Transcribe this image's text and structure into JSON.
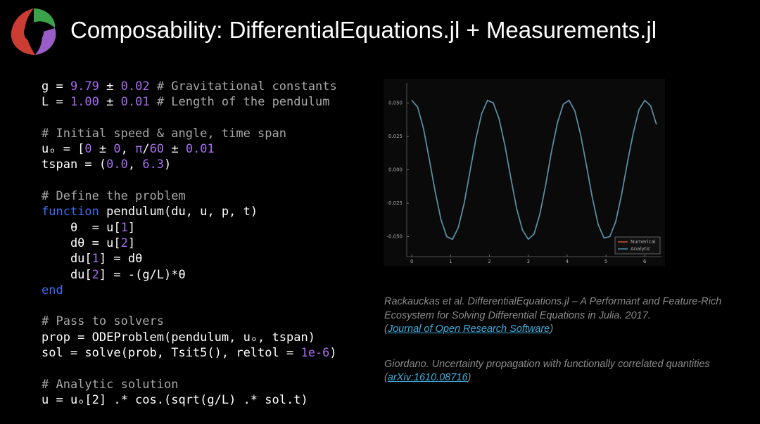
{
  "header": {
    "title": "Composability: DifferentialEquations.jl + Measurements.jl"
  },
  "code": {
    "blocks": [
      [
        [
          "g = ",
          {
            "text": "9.79",
            "color": "#a66cf0"
          },
          " ± ",
          {
            "text": "0.02",
            "color": "#a66cf0"
          },
          {
            "text": " # Gravitational constants",
            "color": "#a8a8a8"
          }
        ],
        [
          "L = ",
          {
            "text": "1.00",
            "color": "#a66cf0"
          },
          " ± ",
          {
            "text": "0.01",
            "color": "#a66cf0"
          },
          {
            "text": " # Length of the pendulum",
            "color": "#a8a8a8"
          }
        ]
      ],
      [
        [
          {
            "text": "# Initial speed & angle, time span",
            "color": "#a8a8a8"
          }
        ],
        [
          "uₒ = [",
          {
            "text": "0",
            "color": "#a66cf0"
          },
          " ± ",
          {
            "text": "0",
            "color": "#a66cf0"
          },
          ", ",
          {
            "text": "π",
            "color": "#a66cf0"
          },
          "/",
          {
            "text": "60",
            "color": "#a66cf0"
          },
          " ± ",
          {
            "text": "0.01",
            "color": "#a66cf0"
          }
        ],
        [
          "tspan = (",
          {
            "text": "0.0",
            "color": "#a66cf0"
          },
          ", ",
          {
            "text": "6.3",
            "color": "#a66cf0"
          },
          ")"
        ]
      ],
      [
        [
          {
            "text": "# Define the problem",
            "color": "#a8a8a8"
          }
        ],
        [
          {
            "text": "function",
            "color": "#3f6cf0"
          },
          " pendulum(du, u, p, t)"
        ],
        [
          "    θ  = u[",
          {
            "text": "1",
            "color": "#a66cf0"
          },
          "]"
        ],
        [
          "    dθ = u[",
          {
            "text": "2",
            "color": "#a66cf0"
          },
          "]"
        ],
        [
          "    du[",
          {
            "text": "1",
            "color": "#a66cf0"
          },
          "] = dθ"
        ],
        [
          "    du[",
          {
            "text": "2",
            "color": "#a66cf0"
          },
          "] = -(g/L)*θ"
        ],
        [
          {
            "text": "end",
            "color": "#3f6cf0"
          }
        ]
      ],
      [
        [
          {
            "text": "# Pass to solvers",
            "color": "#a8a8a8"
          }
        ],
        [
          "prop = ODEProblem(pendulum, uₒ, tspan)"
        ],
        [
          "sol = solve(prob, Tsit5(), reltol = ",
          {
            "text": "1e-6",
            "color": "#a66cf0"
          },
          ")"
        ]
      ],
      [
        [
          {
            "text": "# Analytic solution",
            "color": "#a8a8a8"
          }
        ],
        [
          "u = uₒ[2] .* cos.(sqrt(g/L) .* sol.t)"
        ]
      ]
    ]
  },
  "chart_data": {
    "type": "line",
    "x": [
      0,
      0.15,
      0.3,
      0.45,
      0.6,
      0.75,
      0.9,
      1.05,
      1.2,
      1.35,
      1.5,
      1.65,
      1.8,
      1.95,
      2.1,
      2.25,
      2.4,
      2.55,
      2.7,
      2.85,
      3.0,
      3.15,
      3.3,
      3.45,
      3.6,
      3.75,
      3.9,
      4.05,
      4.2,
      4.35,
      4.5,
      4.65,
      4.8,
      4.95,
      5.1,
      5.25,
      5.4,
      5.55,
      5.7,
      5.85,
      6.0,
      6.15,
      6.3
    ],
    "series": [
      {
        "name": "Numerical",
        "color": "#d9593a",
        "values": [
          0.052,
          0.047,
          0.031,
          0.008,
          -0.016,
          -0.037,
          -0.05,
          -0.052,
          -0.043,
          -0.025,
          -0.001,
          0.023,
          0.042,
          0.052,
          0.05,
          0.038,
          0.018,
          -0.006,
          -0.029,
          -0.045,
          -0.052,
          -0.048,
          -0.033,
          -0.011,
          0.014,
          0.035,
          0.049,
          0.052,
          0.044,
          0.026,
          0.003,
          -0.021,
          -0.041,
          -0.051,
          -0.05,
          -0.039,
          -0.019,
          0.005,
          0.027,
          0.045,
          0.052,
          0.048,
          0.034
        ]
      },
      {
        "name": "Analytic",
        "color": "#4d93ad",
        "values": [
          0.052,
          0.047,
          0.031,
          0.008,
          -0.016,
          -0.037,
          -0.05,
          -0.052,
          -0.043,
          -0.025,
          -0.001,
          0.023,
          0.042,
          0.052,
          0.05,
          0.038,
          0.018,
          -0.006,
          -0.029,
          -0.045,
          -0.052,
          -0.048,
          -0.033,
          -0.011,
          0.014,
          0.035,
          0.049,
          0.052,
          0.044,
          0.026,
          0.003,
          -0.021,
          -0.041,
          -0.051,
          -0.05,
          -0.039,
          -0.019,
          0.005,
          0.027,
          0.045,
          0.052,
          0.048,
          0.034
        ]
      }
    ],
    "xlim": [
      -0.13,
      6.43
    ],
    "ylim": [
      -0.065,
      0.065
    ],
    "xticks": [
      0,
      1,
      2,
      3,
      4,
      5,
      6
    ],
    "yticks": [
      {
        "value": 0.05,
        "label": "0.050"
      },
      {
        "value": 0.025,
        "label": "0.025"
      },
      {
        "value": 0,
        "label": "0.000"
      },
      {
        "value": -0.025,
        "label": "-0.025"
      },
      {
        "value": -0.05,
        "label": "-0.050"
      }
    ],
    "legend": "bottom-right"
  },
  "references": [
    {
      "text": "Rackauckas et al. DifferentialEquations.jl – A Performant and Feature-Rich Ecosystem for Solving Differential Equations in Julia. 2017.",
      "open": "(",
      "link": "Journal of Open Research Software",
      "close": ")"
    },
    {
      "text": "Giordano. Uncertainty propagation with functionally correlated quantities",
      "open": "(",
      "link": "arXiv:1610.08716",
      "close": ")"
    }
  ]
}
